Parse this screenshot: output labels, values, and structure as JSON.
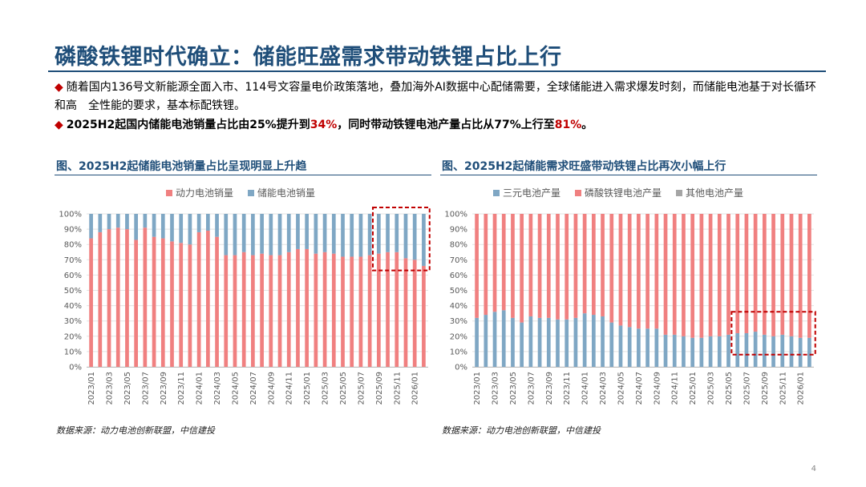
{
  "page": {
    "title": "磷酸铁锂时代确立：储能旺盛需求带动铁锂占比上行",
    "bullet1": "随着国内136号文新能源全面入市、114号文容量电价政策落地，叠加海外AI数据中心配储需要，全球储能进入需求爆发时刻，而储能电池基于对长循环和高　全性能的要求，基本标配铁锂。",
    "bullet2_part1": "2025H2起国内储能电池销量占比由25%提升到",
    "bullet2_hl1": "34%",
    "bullet2_part2": "，同时带动铁锂电池产量占比从77%上行至",
    "bullet2_hl2": "81%",
    "bullet2_part3": "。",
    "page_number": "4",
    "colors": {
      "title": "#1f4e79",
      "accent": "#c00000",
      "pink": "#f08080",
      "blue": "#7fa7c4",
      "gray": "#a5a5a5"
    }
  },
  "left_chart": {
    "heading": "图、2025H2起储能电池销量占比呈现明显上升趋",
    "source": "数据来源：动力电池创新联盟，中信建投"
  },
  "right_chart": {
    "heading": "图、2025H2起储能需求旺盛带动铁锂占比再次小幅上行",
    "source": "数据来源：动力电池创新联盟，中信建投"
  },
  "chart_data": [
    {
      "type": "bar",
      "stacked": true,
      "percent": true,
      "title": "图、2025H2起储能电池销量占比呈现明显上升趋",
      "legend": [
        "动力电池销量",
        "储能电池销量"
      ],
      "legend_position": "top",
      "categories": [
        "2023/01",
        "2023/02",
        "2023/03",
        "2023/04",
        "2023/05",
        "2023/06",
        "2023/07",
        "2023/08",
        "2023/09",
        "2023/10",
        "2023/11",
        "2023/12",
        "2024/01",
        "2024/02",
        "2024/03",
        "2024/04",
        "2024/05",
        "2024/06",
        "2024/07",
        "2024/08",
        "2024/09",
        "2024/10",
        "2024/11",
        "2024/12",
        "2025/01",
        "2025/02",
        "2025/03",
        "2025/04",
        "2025/05",
        "2025/06",
        "2025/07",
        "2025/08",
        "2025/09",
        "2025/10",
        "2025/11",
        "2025/12",
        "2026/01",
        "2026/02"
      ],
      "tick_labels": [
        "2023/01",
        "2023/03",
        "2023/05",
        "2023/07",
        "2023/09",
        "2023/11",
        "2024/01",
        "2024/03",
        "2024/05",
        "2024/07",
        "2024/09",
        "2024/11",
        "2025/01",
        "2025/03",
        "2025/05",
        "2025/07",
        "2025/09",
        "2025/11",
        "2026/01"
      ],
      "series": [
        {
          "name": "动力电池销量",
          "color": "#f08080",
          "values": [
            84,
            88,
            90,
            91,
            90,
            83,
            91,
            85,
            84,
            82,
            81,
            80,
            88,
            89,
            85,
            73,
            73,
            75,
            73,
            74,
            73,
            73,
            75,
            77,
            77,
            74,
            75,
            74,
            72,
            72,
            72,
            73,
            74,
            75,
            75,
            71,
            70,
            66
          ]
        },
        {
          "name": "储能电池销量",
          "color": "#7fa7c4",
          "values": [
            16,
            12,
            10,
            9,
            10,
            17,
            9,
            15,
            16,
            18,
            19,
            20,
            12,
            11,
            15,
            27,
            27,
            25,
            27,
            26,
            27,
            27,
            25,
            23,
            23,
            26,
            25,
            26,
            28,
            28,
            28,
            27,
            26,
            25,
            25,
            29,
            30,
            34
          ]
        }
      ],
      "ylim": [
        0,
        100
      ],
      "yticks": [
        "0%",
        "10%",
        "20%",
        "30%",
        "40%",
        "50%",
        "60%",
        "70%",
        "80%",
        "90%",
        "100%"
      ],
      "highlight": [
        "2025/09",
        "2026/02"
      ]
    },
    {
      "type": "bar",
      "stacked": true,
      "percent": true,
      "title": "图、2025H2起储能需求旺盛带动铁锂占比再次小幅上行",
      "legend": [
        "三元电池产量",
        "磷酸铁锂电池产量",
        "其他电池产量"
      ],
      "legend_position": "top",
      "categories": [
        "2023/01",
        "2023/02",
        "2023/03",
        "2023/04",
        "2023/05",
        "2023/06",
        "2023/07",
        "2023/08",
        "2023/09",
        "2023/10",
        "2023/11",
        "2023/12",
        "2024/01",
        "2024/02",
        "2024/03",
        "2024/04",
        "2024/05",
        "2024/06",
        "2024/07",
        "2024/08",
        "2024/09",
        "2024/10",
        "2024/11",
        "2024/12",
        "2025/01",
        "2025/02",
        "2025/03",
        "2025/04",
        "2025/05",
        "2025/06",
        "2025/07",
        "2025/08",
        "2025/09",
        "2025/10",
        "2025/11",
        "2025/12",
        "2026/01",
        "2026/02"
      ],
      "tick_labels": [
        "2023/01",
        "2023/03",
        "2023/05",
        "2023/07",
        "2023/09",
        "2023/11",
        "2024/01",
        "2024/03",
        "2024/05",
        "2024/07",
        "2024/09",
        "2024/11",
        "2025/01",
        "2025/03",
        "2025/05",
        "2025/07",
        "2025/09",
        "2025/11",
        "2026/01"
      ],
      "series": [
        {
          "name": "三元电池产量",
          "color": "#7fa7c4",
          "values": [
            32,
            34,
            36,
            37,
            32,
            29,
            33,
            32,
            32,
            31,
            31,
            32,
            35,
            34,
            33,
            29,
            27,
            26,
            25,
            25,
            25,
            21,
            21,
            20,
            19,
            19,
            20,
            20,
            21,
            22,
            22,
            23,
            21,
            20,
            21,
            20,
            19,
            19
          ]
        },
        {
          "name": "磷酸铁锂电池产量",
          "color": "#f08080",
          "values": [
            68,
            66,
            64,
            63,
            68,
            71,
            67,
            68,
            68,
            69,
            69,
            68,
            65,
            66,
            67,
            71,
            73,
            74,
            75,
            75,
            75,
            79,
            79,
            80,
            81,
            81,
            80,
            80,
            79,
            78,
            78,
            77,
            79,
            80,
            79,
            80,
            81,
            81
          ]
        },
        {
          "name": "其他电池产量",
          "color": "#a5a5a5",
          "values": [
            0,
            0,
            0,
            0,
            0,
            0,
            0,
            0,
            0,
            0,
            0,
            0,
            0,
            0,
            0,
            0,
            0,
            0,
            0,
            0,
            0,
            0,
            0,
            0,
            0,
            0,
            0,
            0,
            0,
            0,
            0,
            0,
            0,
            0,
            0,
            0,
            0,
            0
          ]
        }
      ],
      "ylim": [
        0,
        100
      ],
      "yticks": [
        "0%",
        "10%",
        "20%",
        "30%",
        "40%",
        "50%",
        "60%",
        "70%",
        "80%",
        "90%",
        "100%"
      ],
      "highlight": [
        "2025/06",
        "2026/02"
      ]
    }
  ]
}
